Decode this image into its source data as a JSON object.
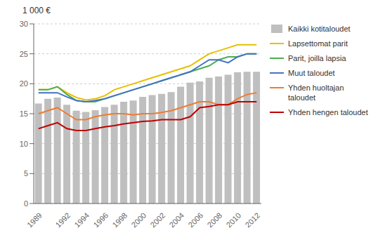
{
  "chart_data": {
    "type": "bar",
    "ylabel": "1 000 €",
    "categories": [
      "1989",
      null,
      null,
      "1992",
      null,
      "1994",
      null,
      "1996",
      null,
      "1998",
      null,
      "2000",
      null,
      "2002",
      null,
      "2004",
      null,
      "2006",
      null,
      "2008",
      null,
      "2010",
      null,
      "2012"
    ],
    "series": [
      {
        "name": "Kaikki kotitaloudet",
        "type": "bar",
        "color": "#bfbfbf",
        "values": [
          16.7,
          17.5,
          17.7,
          16.5,
          15.5,
          15.3,
          15.6,
          16.1,
          16.5,
          17.0,
          17.2,
          17.8,
          18.1,
          18.3,
          18.6,
          19.5,
          20.2,
          20.4,
          21.0,
          21.2,
          21.5,
          21.9,
          22.0,
          22.0
        ]
      },
      {
        "name": "Lapsettomat parit",
        "type": "line",
        "color": "#e8c000",
        "values": [
          19.0,
          19.0,
          19.5,
          18.5,
          17.7,
          17.3,
          17.5,
          18.0,
          19.0,
          19.5,
          20.0,
          20.5,
          21.0,
          21.5,
          22.0,
          22.5,
          23.0,
          24.0,
          25.0,
          25.5,
          26.0,
          26.5,
          26.5,
          26.5
        ]
      },
      {
        "name": "Parit, joilla lapsia",
        "type": "line",
        "color": "#4caf50",
        "values": [
          19.0,
          19.0,
          19.5,
          18.2,
          17.2,
          17.0,
          17.0,
          17.5,
          18.0,
          18.5,
          19.0,
          19.5,
          20.0,
          20.5,
          21.0,
          21.5,
          22.0,
          22.5,
          23.0,
          24.0,
          24.5,
          24.5,
          25.0,
          25.0
        ]
      },
      {
        "name": "Muut taloudet",
        "type": "line",
        "color": "#4472c4",
        "values": [
          18.5,
          18.5,
          18.5,
          17.8,
          17.2,
          17.0,
          17.2,
          17.5,
          18.0,
          18.5,
          19.0,
          19.5,
          20.0,
          20.5,
          21.0,
          21.5,
          22.0,
          23.0,
          24.0,
          24.0,
          23.5,
          24.5,
          25.0,
          25.0
        ]
      },
      {
        "name": "Yhden huoltajan\ntaloudet",
        "type": "line",
        "color": "#ed7d31",
        "values": [
          15.0,
          15.5,
          16.0,
          15.0,
          14.0,
          14.0,
          14.5,
          14.8,
          15.0,
          15.0,
          14.8,
          15.0,
          15.0,
          15.2,
          15.5,
          16.0,
          16.5,
          17.0,
          17.0,
          16.5,
          16.5,
          17.5,
          18.2,
          18.5
        ]
      },
      {
        "name": "Yhden hengen taloudet",
        "type": "line",
        "color": "#c00000",
        "values": [
          12.5,
          13.0,
          13.5,
          12.5,
          12.2,
          12.2,
          12.5,
          12.8,
          13.0,
          13.3,
          13.5,
          13.7,
          13.8,
          14.0,
          14.0,
          14.0,
          14.5,
          16.0,
          16.2,
          16.5,
          16.5,
          17.0,
          17.0,
          17.0
        ]
      }
    ],
    "ylim": [
      0,
      30
    ],
    "yticks": [
      0,
      5,
      10,
      15,
      20,
      25,
      30
    ],
    "grid": true,
    "legend": "right"
  }
}
